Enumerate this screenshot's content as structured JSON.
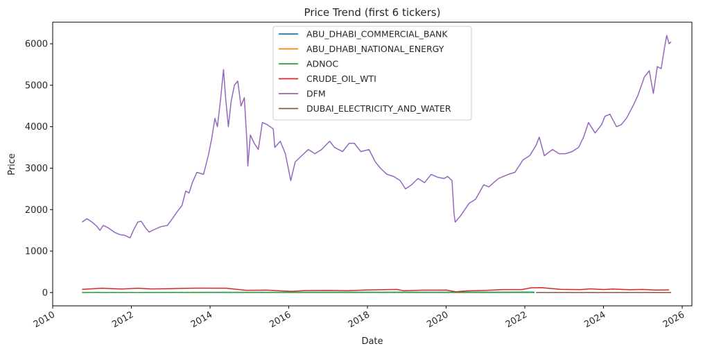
{
  "chart_data": {
    "type": "line",
    "title": "Price Trend (first 6 tickers)",
    "xlabel": "Date",
    "ylabel": "Price",
    "xlim": [
      "2010-01-01",
      "2026-04-01"
    ],
    "ylim": [
      -320,
      6520
    ],
    "x_ticks": [
      "2010",
      "2012",
      "2014",
      "2016",
      "2018",
      "2020",
      "2022",
      "2024",
      "2026"
    ],
    "y_ticks": [
      0,
      1000,
      2000,
      3000,
      4000,
      5000,
      6000
    ],
    "grid": false,
    "legend_position": "top-center",
    "series": [
      {
        "name": "ABU_DHABI_COMMERCIAL_BANK",
        "color": "#1f77b4",
        "points": [
          [
            "2010-10-01",
            4
          ],
          [
            "2012-01-01",
            3
          ],
          [
            "2014-01-01",
            6
          ],
          [
            "2016-01-01",
            6
          ],
          [
            "2018-01-01",
            8
          ],
          [
            "2020-01-01",
            7
          ],
          [
            "2022-04-01",
            9
          ]
        ]
      },
      {
        "name": "ABU_DHABI_NATIONAL_ENERGY",
        "color": "#ff7f0e",
        "points": [
          [
            "2010-10-01",
            1
          ],
          [
            "2014-01-01",
            1
          ],
          [
            "2018-01-01",
            1
          ],
          [
            "2022-04-01",
            1
          ]
        ]
      },
      {
        "name": "ADNOC",
        "color": "#2ca02c",
        "points": [
          [
            "2010-10-01",
            3
          ],
          [
            "2016-01-01",
            3
          ],
          [
            "2022-04-01",
            3
          ]
        ]
      },
      {
        "name": "CRUDE_OIL_WTI",
        "color": "#d62728",
        "points": [
          [
            "2010-10-01",
            78
          ],
          [
            "2011-04-01",
            105
          ],
          [
            "2011-10-01",
            85
          ],
          [
            "2012-03-01",
            105
          ],
          [
            "2012-07-01",
            88
          ],
          [
            "2013-01-01",
            95
          ],
          [
            "2013-09-01",
            106
          ],
          [
            "2014-06-01",
            105
          ],
          [
            "2014-12-01",
            55
          ],
          [
            "2015-06-01",
            60
          ],
          [
            "2015-12-01",
            37
          ],
          [
            "2016-02-01",
            30
          ],
          [
            "2016-06-01",
            48
          ],
          [
            "2017-01-01",
            53
          ],
          [
            "2017-07-01",
            47
          ],
          [
            "2018-01-01",
            63
          ],
          [
            "2018-10-01",
            75
          ],
          [
            "2018-12-01",
            45
          ],
          [
            "2019-06-01",
            58
          ],
          [
            "2020-01-01",
            60
          ],
          [
            "2020-04-01",
            18
          ],
          [
            "2020-07-01",
            40
          ],
          [
            "2021-01-01",
            52
          ],
          [
            "2021-06-01",
            72
          ],
          [
            "2021-12-01",
            72
          ],
          [
            "2022-03-01",
            115
          ],
          [
            "2022-06-01",
            118
          ],
          [
            "2022-12-01",
            78
          ],
          [
            "2023-06-01",
            72
          ],
          [
            "2023-09-01",
            90
          ],
          [
            "2024-01-01",
            73
          ],
          [
            "2024-04-01",
            85
          ],
          [
            "2024-09-01",
            68
          ],
          [
            "2025-01-01",
            75
          ],
          [
            "2025-05-01",
            60
          ],
          [
            "2025-09-01",
            64
          ]
        ]
      },
      {
        "name": "DFM",
        "color": "#9467bd",
        "points": [
          [
            "2010-10-01",
            1700
          ],
          [
            "2010-11-15",
            1780
          ],
          [
            "2011-01-01",
            1700
          ],
          [
            "2011-02-15",
            1600
          ],
          [
            "2011-03-15",
            1500
          ],
          [
            "2011-04-15",
            1620
          ],
          [
            "2011-06-01",
            1560
          ],
          [
            "2011-08-01",
            1450
          ],
          [
            "2011-09-15",
            1400
          ],
          [
            "2011-11-01",
            1380
          ],
          [
            "2011-12-20",
            1320
          ],
          [
            "2012-01-20",
            1500
          ],
          [
            "2012-03-01",
            1700
          ],
          [
            "2012-04-01",
            1720
          ],
          [
            "2012-05-15",
            1550
          ],
          [
            "2012-06-15",
            1460
          ],
          [
            "2012-08-01",
            1520
          ],
          [
            "2012-10-01",
            1590
          ],
          [
            "2012-12-01",
            1620
          ],
          [
            "2013-01-15",
            1780
          ],
          [
            "2013-03-01",
            1950
          ],
          [
            "2013-04-15",
            2100
          ],
          [
            "2013-05-20",
            2450
          ],
          [
            "2013-06-20",
            2400
          ],
          [
            "2013-07-20",
            2650
          ],
          [
            "2013-09-01",
            2900
          ],
          [
            "2013-11-01",
            2850
          ],
          [
            "2013-12-15",
            3300
          ],
          [
            "2014-01-15",
            3700
          ],
          [
            "2014-02-15",
            4200
          ],
          [
            "2014-03-10",
            4000
          ],
          [
            "2014-04-10",
            4700
          ],
          [
            "2014-05-06",
            5380
          ],
          [
            "2014-05-25",
            4700
          ],
          [
            "2014-06-20",
            4000
          ],
          [
            "2014-07-15",
            4600
          ],
          [
            "2014-08-15",
            5000
          ],
          [
            "2014-09-15",
            5100
          ],
          [
            "2014-10-15",
            4500
          ],
          [
            "2014-11-15",
            4700
          ],
          [
            "2014-12-10",
            3600
          ],
          [
            "2014-12-18",
            3050
          ],
          [
            "2015-01-10",
            3800
          ],
          [
            "2015-02-15",
            3600
          ],
          [
            "2015-03-25",
            3450
          ],
          [
            "2015-05-01",
            4100
          ],
          [
            "2015-06-15",
            4050
          ],
          [
            "2015-08-10",
            3950
          ],
          [
            "2015-08-25",
            3500
          ],
          [
            "2015-10-15",
            3650
          ],
          [
            "2015-12-01",
            3350
          ],
          [
            "2016-01-20",
            2700
          ],
          [
            "2016-03-01",
            3150
          ],
          [
            "2016-05-01",
            3300
          ],
          [
            "2016-07-01",
            3450
          ],
          [
            "2016-09-01",
            3350
          ],
          [
            "2016-11-01",
            3450
          ],
          [
            "2017-01-15",
            3650
          ],
          [
            "2017-03-01",
            3500
          ],
          [
            "2017-05-15",
            3400
          ],
          [
            "2017-07-15",
            3600
          ],
          [
            "2017-09-01",
            3600
          ],
          [
            "2017-11-01",
            3400
          ],
          [
            "2018-01-15",
            3450
          ],
          [
            "2018-03-15",
            3150
          ],
          [
            "2018-05-01",
            3000
          ],
          [
            "2018-07-01",
            2850
          ],
          [
            "2018-09-01",
            2800
          ],
          [
            "2018-11-01",
            2700
          ],
          [
            "2018-12-20",
            2500
          ],
          [
            "2019-02-15",
            2600
          ],
          [
            "2019-04-15",
            2750
          ],
          [
            "2019-06-15",
            2650
          ],
          [
            "2019-08-15",
            2850
          ],
          [
            "2019-10-15",
            2780
          ],
          [
            "2019-12-15",
            2750
          ],
          [
            "2020-01-15",
            2800
          ],
          [
            "2020-02-25",
            2700
          ],
          [
            "2020-03-15",
            1900
          ],
          [
            "2020-03-25",
            1700
          ],
          [
            "2020-05-15",
            1850
          ],
          [
            "2020-08-01",
            2150
          ],
          [
            "2020-10-01",
            2250
          ],
          [
            "2020-12-15",
            2600
          ],
          [
            "2021-02-01",
            2550
          ],
          [
            "2021-05-01",
            2750
          ],
          [
            "2021-08-01",
            2850
          ],
          [
            "2021-10-01",
            2900
          ],
          [
            "2021-12-15",
            3200
          ],
          [
            "2022-02-15",
            3300
          ],
          [
            "2022-04-15",
            3550
          ],
          [
            "2022-05-15",
            3750
          ],
          [
            "2022-07-01",
            3300
          ],
          [
            "2022-09-15",
            3450
          ],
          [
            "2022-11-15",
            3350
          ],
          [
            "2023-01-15",
            3350
          ],
          [
            "2023-03-15",
            3400
          ],
          [
            "2023-05-15",
            3500
          ],
          [
            "2023-07-01",
            3750
          ],
          [
            "2023-08-15",
            4100
          ],
          [
            "2023-10-15",
            3850
          ],
          [
            "2023-12-15",
            4050
          ],
          [
            "2024-01-15",
            4250
          ],
          [
            "2024-03-01",
            4300
          ],
          [
            "2024-05-01",
            4000
          ],
          [
            "2024-06-15",
            4050
          ],
          [
            "2024-08-01",
            4200
          ],
          [
            "2024-10-01",
            4500
          ],
          [
            "2024-11-15",
            4750
          ],
          [
            "2025-01-15",
            5200
          ],
          [
            "2025-03-01",
            5350
          ],
          [
            "2025-04-08",
            4800
          ],
          [
            "2025-05-15",
            5450
          ],
          [
            "2025-06-20",
            5400
          ],
          [
            "2025-07-20",
            5900
          ],
          [
            "2025-08-10",
            6200
          ],
          [
            "2025-09-01",
            6000
          ],
          [
            "2025-09-20",
            6050
          ]
        ]
      },
      {
        "name": "DUBAI_ELECTRICITY_AND_WATER",
        "color": "#8c564b",
        "points": [
          [
            "2022-04-15",
            3
          ],
          [
            "2023-06-01",
            3
          ],
          [
            "2024-06-01",
            3
          ],
          [
            "2025-09-20",
            3
          ]
        ]
      }
    ]
  }
}
